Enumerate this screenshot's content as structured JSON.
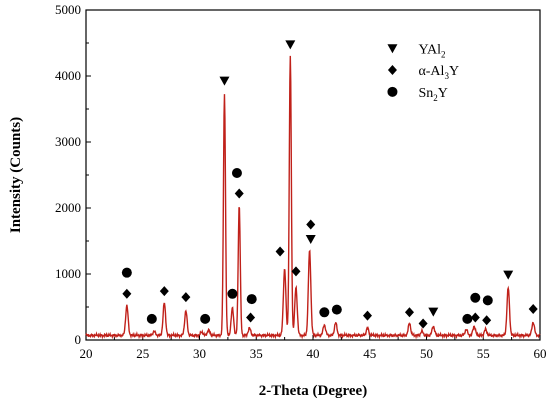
{
  "chart_data": {
    "type": "line",
    "xlabel": "2-Theta (Degree)",
    "ylabel": "Intensity (Counts)",
    "xlim": [
      20,
      60
    ],
    "ylim": [
      0,
      5000
    ],
    "xticks": [
      20,
      25,
      30,
      35,
      40,
      45,
      50,
      55,
      60
    ],
    "yticks": [
      0,
      1000,
      2000,
      3000,
      4000,
      5000
    ],
    "grid": false,
    "legend_position": "top-right",
    "line_color": "#c0211a",
    "baseline": 70,
    "peaks": [
      {
        "x": 23.6,
        "y": 520
      },
      {
        "x": 26.0,
        "y": 130
      },
      {
        "x": 26.9,
        "y": 560
      },
      {
        "x": 28.8,
        "y": 440
      },
      {
        "x": 30.2,
        "y": 120
      },
      {
        "x": 30.8,
        "y": 150
      },
      {
        "x": 32.2,
        "y": 3730
      },
      {
        "x": 32.9,
        "y": 480
      },
      {
        "x": 33.5,
        "y": 2050
      },
      {
        "x": 34.4,
        "y": 180
      },
      {
        "x": 37.5,
        "y": 1080
      },
      {
        "x": 38.0,
        "y": 4310
      },
      {
        "x": 38.5,
        "y": 790
      },
      {
        "x": 39.7,
        "y": 1350
      },
      {
        "x": 41.0,
        "y": 230
      },
      {
        "x": 42.0,
        "y": 260
      },
      {
        "x": 44.8,
        "y": 180
      },
      {
        "x": 48.5,
        "y": 250
      },
      {
        "x": 49.6,
        "y": 130
      },
      {
        "x": 50.6,
        "y": 210
      },
      {
        "x": 53.5,
        "y": 160
      },
      {
        "x": 54.2,
        "y": 210
      },
      {
        "x": 55.2,
        "y": 160
      },
      {
        "x": 57.2,
        "y": 790
      },
      {
        "x": 59.4,
        "y": 270
      }
    ],
    "markers": [
      {
        "phase": "YAl2",
        "shape": "triangle-down",
        "points": [
          [
            32.2,
            3930
          ],
          [
            38.0,
            4480
          ],
          [
            39.8,
            1530
          ],
          [
            50.6,
            430
          ],
          [
            57.2,
            990
          ]
        ]
      },
      {
        "phase": "a-Al3Y",
        "shape": "diamond",
        "points": [
          [
            23.6,
            700
          ],
          [
            26.9,
            740
          ],
          [
            28.8,
            650
          ],
          [
            33.5,
            2220
          ],
          [
            34.5,
            340
          ],
          [
            37.1,
            1340
          ],
          [
            38.5,
            1040
          ],
          [
            39.8,
            1750
          ],
          [
            44.8,
            370
          ],
          [
            48.5,
            420
          ],
          [
            49.7,
            250
          ],
          [
            54.3,
            340
          ],
          [
            55.3,
            300
          ],
          [
            59.4,
            470
          ]
        ]
      },
      {
        "phase": "Sn2Y",
        "shape": "circle",
        "points": [
          [
            23.6,
            1020
          ],
          [
            25.8,
            320
          ],
          [
            30.5,
            320
          ],
          [
            32.9,
            700
          ],
          [
            33.3,
            2530
          ],
          [
            34.6,
            620
          ],
          [
            41.0,
            420
          ],
          [
            42.1,
            460
          ],
          [
            53.6,
            320
          ],
          [
            54.3,
            640
          ],
          [
            55.4,
            600
          ]
        ]
      }
    ],
    "legend": [
      {
        "shape": "triangle-down",
        "label": "YAl",
        "sub": "2",
        "suffix": ""
      },
      {
        "shape": "diamond",
        "label": "α-Al",
        "sub": "3",
        "suffix": "Y"
      },
      {
        "shape": "circle",
        "label": "Sn",
        "sub": "2",
        "suffix": "Y"
      }
    ]
  }
}
